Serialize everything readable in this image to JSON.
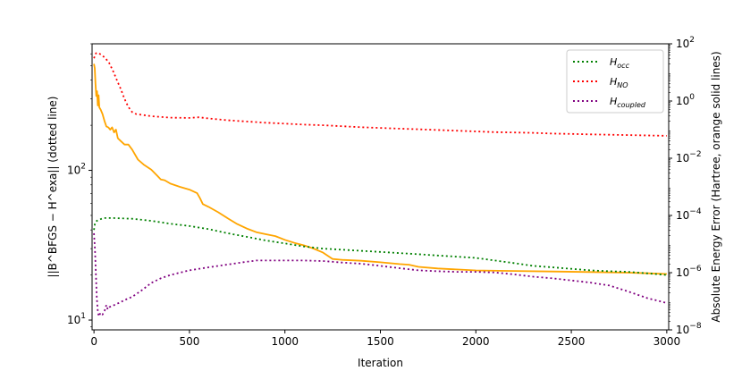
{
  "chart_data": {
    "type": "line",
    "xlabel": "Iteration",
    "ylabel_left": "||B^BFGS − H^exa|| (dotted line)",
    "ylabel_right": "Absolute Energy Error (Hartree, orange solid lines)",
    "xlim": [
      -10,
      3010
    ],
    "ylim_left": [
      8.6,
      700
    ],
    "ylim_right": [
      1e-08,
      100
    ],
    "x_scale": "linear",
    "y_scale_left": "log",
    "y_scale_right": "log",
    "x_ticks": [
      0,
      500,
      1000,
      1500,
      2000,
      2500,
      3000
    ],
    "left_ticks": [
      {
        "value": 10,
        "base": "10",
        "exp": "1"
      },
      {
        "value": 100,
        "base": "10",
        "exp": "2"
      }
    ],
    "right_ticks": [
      {
        "value": 1e-08,
        "base": "10",
        "exp": "−8"
      },
      {
        "value": 1e-06,
        "base": "10",
        "exp": "−6"
      },
      {
        "value": 0.0001,
        "base": "10",
        "exp": "−4"
      },
      {
        "value": 0.01,
        "base": "10",
        "exp": "−2"
      },
      {
        "value": 1,
        "base": "10",
        "exp": "0"
      },
      {
        "value": 100,
        "base": "10",
        "exp": "2"
      }
    ],
    "grid": false,
    "legend_position": "top-right",
    "series": [
      {
        "name": "H_occ",
        "legend_main": "H",
        "legend_sub": "occ",
        "axis": "left",
        "style": "dotted",
        "color": "#008000",
        "points": [
          [
            0,
            40
          ],
          [
            5,
            44
          ],
          [
            15,
            46
          ],
          [
            30,
            47
          ],
          [
            50,
            48
          ],
          [
            100,
            48
          ],
          [
            200,
            47.5
          ],
          [
            300,
            46
          ],
          [
            400,
            44
          ],
          [
            500,
            42.5
          ],
          [
            600,
            40.5
          ],
          [
            700,
            38
          ],
          [
            800,
            36
          ],
          [
            900,
            34
          ],
          [
            1000,
            32.5
          ],
          [
            1100,
            31
          ],
          [
            1200,
            30
          ],
          [
            1300,
            29.5
          ],
          [
            1400,
            29
          ],
          [
            1500,
            28.5
          ],
          [
            1600,
            28
          ],
          [
            1700,
            27.5
          ],
          [
            1800,
            27
          ],
          [
            1900,
            26.5
          ],
          [
            2000,
            26
          ],
          [
            2100,
            25
          ],
          [
            2200,
            24
          ],
          [
            2300,
            23
          ],
          [
            2400,
            22.5
          ],
          [
            2500,
            22
          ],
          [
            2600,
            21.5
          ],
          [
            2700,
            21.2
          ],
          [
            2800,
            21
          ],
          [
            2900,
            20.5
          ],
          [
            3000,
            20
          ]
        ]
      },
      {
        "name": "H_NO",
        "legend_main": "H",
        "legend_sub": "NO",
        "axis": "left",
        "style": "dotted",
        "color": "#ff0000",
        "points": [
          [
            0,
            560
          ],
          [
            10,
            605
          ],
          [
            20,
            610
          ],
          [
            40,
            590
          ],
          [
            60,
            560
          ],
          [
            80,
            520
          ],
          [
            100,
            460
          ],
          [
            120,
            400
          ],
          [
            140,
            350
          ],
          [
            160,
            300
          ],
          [
            180,
            265
          ],
          [
            200,
            245
          ],
          [
            220,
            238
          ],
          [
            300,
            230
          ],
          [
            400,
            225
          ],
          [
            500,
            224
          ],
          [
            550,
            226
          ],
          [
            600,
            222
          ],
          [
            700,
            216
          ],
          [
            800,
            212
          ],
          [
            900,
            208
          ],
          [
            1000,
            205
          ],
          [
            1100,
            202
          ],
          [
            1200,
            200
          ],
          [
            1300,
            197
          ],
          [
            1400,
            194
          ],
          [
            1500,
            192
          ],
          [
            1600,
            190
          ],
          [
            1700,
            188
          ],
          [
            1800,
            186
          ],
          [
            1900,
            184
          ],
          [
            2000,
            182
          ],
          [
            2100,
            180
          ],
          [
            2200,
            179
          ],
          [
            2300,
            178
          ],
          [
            2400,
            176
          ],
          [
            2500,
            175
          ],
          [
            2600,
            174
          ],
          [
            2700,
            173
          ],
          [
            2800,
            172
          ],
          [
            2900,
            171
          ],
          [
            3000,
            170
          ]
        ]
      },
      {
        "name": "H_coupled",
        "legend_main": "H",
        "legend_sub": "coupled",
        "axis": "left",
        "style": "dotted",
        "color": "#800080",
        "points": [
          [
            0,
            38
          ],
          [
            5,
            30
          ],
          [
            10,
            20
          ],
          [
            15,
            14
          ],
          [
            20,
            11.5
          ],
          [
            25,
            10.6
          ],
          [
            35,
            11.2
          ],
          [
            45,
            10.9
          ],
          [
            55,
            11.5
          ],
          [
            65,
            12.6
          ],
          [
            72,
            11.8
          ],
          [
            80,
            12.2
          ],
          [
            100,
            12.5
          ],
          [
            130,
            13
          ],
          [
            160,
            13.6
          ],
          [
            200,
            14.3
          ],
          [
            250,
            15.8
          ],
          [
            300,
            17.7
          ],
          [
            350,
            19
          ],
          [
            400,
            20
          ],
          [
            500,
            21.5
          ],
          [
            600,
            22.5
          ],
          [
            700,
            23.5
          ],
          [
            800,
            24.5
          ],
          [
            850,
            25
          ],
          [
            900,
            25
          ],
          [
            1000,
            25
          ],
          [
            1100,
            25
          ],
          [
            1200,
            24.8
          ],
          [
            1300,
            24.2
          ],
          [
            1400,
            23.8
          ],
          [
            1500,
            23
          ],
          [
            1600,
            22.2
          ],
          [
            1700,
            21.5
          ],
          [
            1800,
            21.2
          ],
          [
            1900,
            21
          ],
          [
            2000,
            21
          ],
          [
            2100,
            20.8
          ],
          [
            2200,
            20.2
          ],
          [
            2300,
            19.5
          ],
          [
            2400,
            19
          ],
          [
            2500,
            18.4
          ],
          [
            2600,
            17.8
          ],
          [
            2700,
            17
          ],
          [
            2800,
            15.5
          ],
          [
            2900,
            14
          ],
          [
            3000,
            13
          ]
        ]
      },
      {
        "name": "Absolute Energy Error",
        "legend_main": "",
        "legend_sub": "",
        "axis": "right",
        "style": "solid",
        "color": "#ffa500",
        "points": [
          [
            0,
            20
          ],
          [
            4,
            14
          ],
          [
            8,
            4
          ],
          [
            12,
            1.5
          ],
          [
            16,
            2.2
          ],
          [
            20,
            0.7
          ],
          [
            24,
            1.6
          ],
          [
            28,
            0.6
          ],
          [
            35,
            0.5
          ],
          [
            45,
            0.35
          ],
          [
            55,
            0.2
          ],
          [
            65,
            0.13
          ],
          [
            75,
            0.12
          ],
          [
            85,
            0.1
          ],
          [
            95,
            0.12
          ],
          [
            105,
            0.08
          ],
          [
            115,
            0.1
          ],
          [
            125,
            0.05
          ],
          [
            140,
            0.04
          ],
          [
            160,
            0.03
          ],
          [
            180,
            0.03
          ],
          [
            200,
            0.02
          ],
          [
            230,
            0.009
          ],
          [
            260,
            0.006
          ],
          [
            300,
            0.004
          ],
          [
            330,
            0.0025
          ],
          [
            350,
            0.0018
          ],
          [
            370,
            0.0017
          ],
          [
            400,
            0.0013
          ],
          [
            450,
            0.001
          ],
          [
            500,
            0.0008
          ],
          [
            540,
            0.0006
          ],
          [
            555,
            0.0004
          ],
          [
            570,
            0.00025
          ],
          [
            600,
            0.0002
          ],
          [
            650,
            0.00013
          ],
          [
            700,
            8e-05
          ],
          [
            750,
            5e-05
          ],
          [
            800,
            3.5e-05
          ],
          [
            850,
            2.6e-05
          ],
          [
            900,
            2.2e-05
          ],
          [
            950,
            1.9e-05
          ],
          [
            1000,
            1.4e-05
          ],
          [
            1050,
            1.1e-05
          ],
          [
            1100,
            9e-06
          ],
          [
            1150,
            7e-06
          ],
          [
            1200,
            5e-06
          ],
          [
            1250,
            3e-06
          ],
          [
            1300,
            2.8e-06
          ],
          [
            1400,
            2.6e-06
          ],
          [
            1500,
            2.3e-06
          ],
          [
            1600,
            2e-06
          ],
          [
            1650,
            1.9e-06
          ],
          [
            1700,
            1.6e-06
          ],
          [
            1800,
            1.4e-06
          ],
          [
            1900,
            1.3e-06
          ],
          [
            2000,
            1.2e-06
          ],
          [
            2200,
            1.15e-06
          ],
          [
            2400,
            1.1e-06
          ],
          [
            2600,
            1.05e-06
          ],
          [
            2800,
            1e-06
          ],
          [
            2900,
            9.5e-07
          ],
          [
            3000,
            9e-07
          ]
        ]
      }
    ]
  }
}
